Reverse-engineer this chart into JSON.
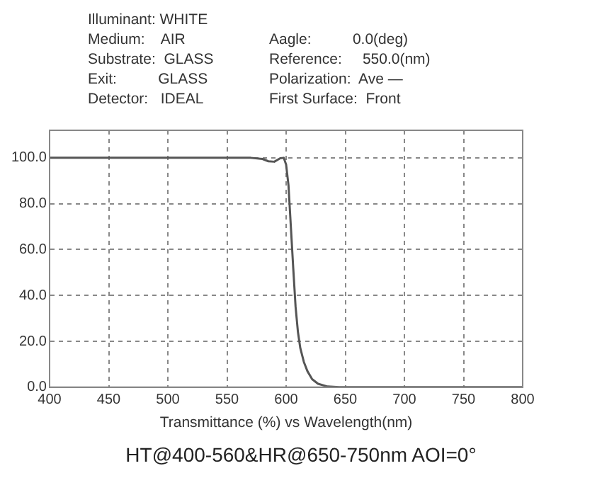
{
  "chart_data": {
    "type": "line",
    "title": "HT@400-560&HR@650-750nm AOI=0°",
    "xlabel": "Transmittance (%) vs Wavelength(nm)",
    "annotations": [
      "Illuminant: WHITE",
      "Medium:    AIR",
      "Substrate:  GLASS",
      "Exit:          GLASS",
      "Detector:   IDEAL",
      "Aagle:          0.0(deg)",
      "Reference:     550.0(nm)",
      "Polarization:  Ave —",
      "First Surface:  Front"
    ],
    "x": [
      400,
      450,
      500,
      550,
      570,
      580,
      585,
      590,
      595,
      598,
      600,
      602,
      604,
      606,
      608,
      610,
      612,
      615,
      618,
      622,
      627,
      635,
      645,
      700,
      800
    ],
    "series": [
      {
        "color": "#555555",
        "values": [
          100,
          100,
          100,
          100,
          100,
          99.5,
          98.5,
          98.3,
          99.8,
          100,
          97,
          88,
          70,
          52,
          35,
          24,
          17,
          11,
          7,
          3.5,
          1.5,
          0.3,
          0,
          0,
          0
        ]
      }
    ],
    "xlim": [
      400,
      800
    ],
    "xticks": [
      400,
      450,
      500,
      550,
      600,
      650,
      700,
      750,
      800
    ],
    "ylim": [
      0,
      112
    ],
    "yticks": [
      {
        "value": 0,
        "label": "0.0"
      },
      {
        "value": 20,
        "label": "20.0"
      },
      {
        "value": 40,
        "label": "40.0"
      },
      {
        "value": 60,
        "label": "60.0"
      },
      {
        "value": 80,
        "label": "80.0"
      },
      {
        "value": 100,
        "label": "100.0"
      }
    ],
    "grid": true,
    "legend": false,
    "marker": "none",
    "line_style": "solid"
  }
}
